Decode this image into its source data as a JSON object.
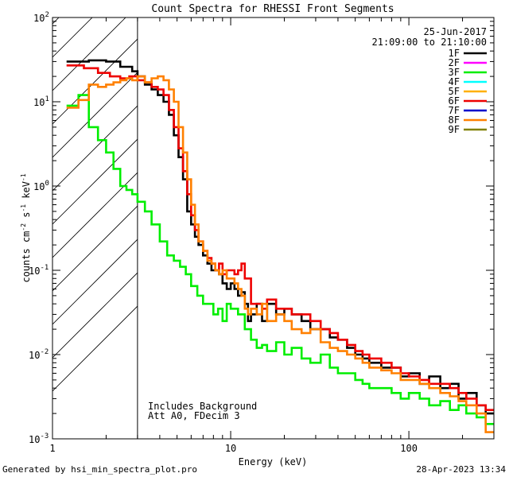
{
  "chart_data": {
    "type": "line",
    "title": "Count Spectra for RHESSI Front Segments",
    "xlabel": "Energy (keV)",
    "ylabel_parts": [
      "counts cm",
      "-2",
      " s",
      "-1",
      " keV",
      "-1"
    ],
    "xscale": "log",
    "yscale": "log",
    "xlim": [
      1,
      300
    ],
    "ylim": [
      0.001,
      100
    ],
    "x_tick_labels": [
      {
        "value": 1,
        "label": "1"
      },
      {
        "value": 10,
        "label": "10"
      },
      {
        "value": 100,
        "label": "100"
      }
    ],
    "y_tick_labels": [
      {
        "value": 100,
        "base": "10",
        "exp": "2"
      },
      {
        "value": 10,
        "base": "10",
        "exp": "1"
      },
      {
        "value": 1,
        "base": "10",
        "exp": "0"
      },
      {
        "value": 0.1,
        "base": "10",
        "exp": "-1"
      },
      {
        "value": 0.01,
        "base": "10",
        "exp": "-2"
      },
      {
        "value": 0.001,
        "base": "10",
        "exp": "-3"
      }
    ],
    "header_date": "25-Jun-2017",
    "header_time": "21:09:00 to 21:10:00",
    "hatched_region_xmax": 3,
    "annotations": [
      "Includes Background",
      "Att A0, FDecim 3"
    ],
    "legend": [
      {
        "name": "1F",
        "color": "#000000"
      },
      {
        "name": "2F",
        "color": "#ff00ff"
      },
      {
        "name": "3F",
        "color": "#00ee00"
      },
      {
        "name": "4F",
        "color": "#00ffff"
      },
      {
        "name": "5F",
        "color": "#ffb000"
      },
      {
        "name": "6F",
        "color": "#ee0000"
      },
      {
        "name": "7F",
        "color": "#0000cc"
      },
      {
        "name": "8F",
        "color": "#ff8000"
      },
      {
        "name": "9F",
        "color": "#808000"
      }
    ],
    "series": [
      {
        "name": "1F",
        "color": "#000000",
        "x": [
          1.2,
          1.6,
          2.0,
          2.4,
          2.8,
          3.0,
          3.3,
          3.6,
          3.9,
          4.2,
          4.5,
          4.8,
          5.1,
          5.4,
          5.7,
          6.0,
          6.3,
          6.6,
          7.0,
          7.4,
          7.8,
          8.2,
          8.6,
          9.0,
          9.5,
          10.0,
          10.5,
          11.0,
          11.5,
          12.0,
          12.5,
          13.0,
          14.0,
          15.0,
          16.0,
          18.0,
          20.0,
          22.0,
          25.0,
          28.0,
          32.0,
          36.0,
          40.0,
          45.0,
          50.0,
          55.0,
          60.0,
          70.0,
          80.0,
          90.0,
          100.0,
          115.0,
          130.0,
          150.0,
          170.0,
          190.0,
          210.0,
          240.0,
          270.0
        ],
        "y": [
          30,
          31,
          30,
          26,
          23,
          20,
          16,
          14,
          12,
          10,
          7.0,
          4.0,
          2.2,
          1.2,
          0.5,
          0.35,
          0.25,
          0.2,
          0.15,
          0.12,
          0.1,
          0.1,
          0.09,
          0.07,
          0.06,
          0.07,
          0.06,
          0.05,
          0.055,
          0.04,
          0.025,
          0.03,
          0.04,
          0.025,
          0.04,
          0.03,
          0.035,
          0.03,
          0.025,
          0.02,
          0.02,
          0.016,
          0.015,
          0.012,
          0.01,
          0.009,
          0.008,
          0.007,
          0.007,
          0.0055,
          0.006,
          0.0045,
          0.0055,
          0.004,
          0.0045,
          0.003,
          0.0035,
          0.0025,
          0.002
        ]
      },
      {
        "name": "3F",
        "color": "#00ee00",
        "x": [
          1.2,
          1.4,
          1.6,
          1.8,
          2.0,
          2.2,
          2.4,
          2.6,
          2.8,
          3.0,
          3.3,
          3.6,
          4.0,
          4.4,
          4.8,
          5.2,
          5.6,
          6.0,
          6.5,
          7.0,
          7.5,
          8.0,
          8.5,
          9.0,
          9.5,
          10.0,
          11.0,
          12.0,
          13.0,
          14.0,
          15.0,
          16.0,
          18.0,
          20.0,
          22.0,
          25.0,
          28.0,
          32.0,
          36.0,
          40.0,
          45.0,
          50.0,
          55.0,
          60.0,
          70.0,
          80.0,
          90.0,
          100.0,
          115.0,
          130.0,
          150.0,
          170.0,
          190.0,
          210.0,
          240.0,
          270.0
        ],
        "y": [
          9,
          12,
          5,
          3.5,
          2.5,
          1.6,
          1.0,
          0.9,
          0.8,
          0.65,
          0.5,
          0.35,
          0.22,
          0.15,
          0.13,
          0.11,
          0.09,
          0.065,
          0.05,
          0.04,
          0.04,
          0.03,
          0.035,
          0.025,
          0.04,
          0.035,
          0.03,
          0.02,
          0.015,
          0.012,
          0.013,
          0.011,
          0.014,
          0.01,
          0.012,
          0.009,
          0.008,
          0.01,
          0.007,
          0.006,
          0.006,
          0.005,
          0.0045,
          0.004,
          0.004,
          0.0035,
          0.003,
          0.0035,
          0.003,
          0.0025,
          0.0028,
          0.0022,
          0.0025,
          0.002,
          0.0018,
          0.0015
        ]
      },
      {
        "name": "6F",
        "color": "#ee0000",
        "x": [
          1.2,
          1.5,
          1.8,
          2.1,
          2.4,
          2.7,
          3.0,
          3.3,
          3.6,
          3.9,
          4.2,
          4.5,
          4.8,
          5.1,
          5.4,
          5.7,
          6.0,
          6.3,
          6.6,
          7.0,
          7.4,
          7.8,
          8.2,
          8.6,
          9.0,
          9.5,
          10.0,
          10.5,
          11.0,
          11.5,
          12.0,
          13.0,
          14.0,
          15.0,
          16.0,
          18.0,
          20.0,
          22.0,
          25.0,
          28.0,
          32.0,
          36.0,
          40.0,
          45.0,
          50.0,
          55.0,
          60.0,
          70.0,
          80.0,
          90.0,
          100.0,
          115.0,
          130.0,
          150.0,
          170.0,
          190.0,
          210.0,
          240.0,
          270.0
        ],
        "y": [
          27,
          25,
          22,
          20,
          19,
          20,
          18,
          17,
          15,
          14,
          12,
          8.0,
          5.0,
          2.8,
          1.5,
          0.8,
          0.45,
          0.3,
          0.22,
          0.17,
          0.14,
          0.12,
          0.1,
          0.12,
          0.09,
          0.1,
          0.1,
          0.09,
          0.1,
          0.12,
          0.08,
          0.04,
          0.04,
          0.035,
          0.045,
          0.035,
          0.035,
          0.03,
          0.03,
          0.025,
          0.02,
          0.018,
          0.015,
          0.013,
          0.011,
          0.01,
          0.009,
          0.008,
          0.007,
          0.006,
          0.0055,
          0.005,
          0.0045,
          0.0045,
          0.004,
          0.0035,
          0.003,
          0.0025,
          0.0022
        ]
      },
      {
        "name": "8F",
        "color": "#ff8000",
        "x": [
          1.2,
          1.4,
          1.6,
          1.8,
          2.0,
          2.2,
          2.4,
          2.6,
          2.8,
          3.0,
          3.3,
          3.6,
          3.9,
          4.2,
          4.5,
          4.8,
          5.1,
          5.4,
          5.7,
          6.0,
          6.3,
          6.6,
          7.0,
          7.4,
          7.8,
          8.2,
          8.6,
          9.0,
          9.5,
          10.0,
          10.5,
          11.0,
          11.5,
          12.0,
          12.5,
          13.0,
          14.0,
          15.0,
          16.0,
          18.0,
          20.0,
          22.0,
          25.0,
          28.0,
          32.0,
          36.0,
          40.0,
          45.0,
          50.0,
          55.0,
          60.0,
          70.0,
          80.0,
          90.0,
          100.0,
          115.0,
          130.0,
          150.0,
          170.0,
          190.0,
          210.0,
          240.0,
          270.0
        ],
        "y": [
          8.5,
          10.5,
          16,
          15,
          16,
          17,
          18,
          19,
          18,
          20,
          17,
          19,
          20,
          18,
          14,
          10,
          5.0,
          2.5,
          1.2,
          0.6,
          0.35,
          0.22,
          0.17,
          0.13,
          0.12,
          0.1,
          0.09,
          0.1,
          0.08,
          0.08,
          0.07,
          0.06,
          0.05,
          0.035,
          0.03,
          0.035,
          0.03,
          0.04,
          0.025,
          0.03,
          0.025,
          0.02,
          0.018,
          0.02,
          0.014,
          0.012,
          0.011,
          0.01,
          0.009,
          0.008,
          0.007,
          0.0065,
          0.006,
          0.005,
          0.005,
          0.0045,
          0.004,
          0.0035,
          0.0032,
          0.0028,
          0.0025,
          0.002,
          0.0012
        ]
      }
    ]
  },
  "footer": {
    "left": "Generated by hsi_min_spectra_plot.pro",
    "right": "28-Apr-2023 13:34"
  }
}
